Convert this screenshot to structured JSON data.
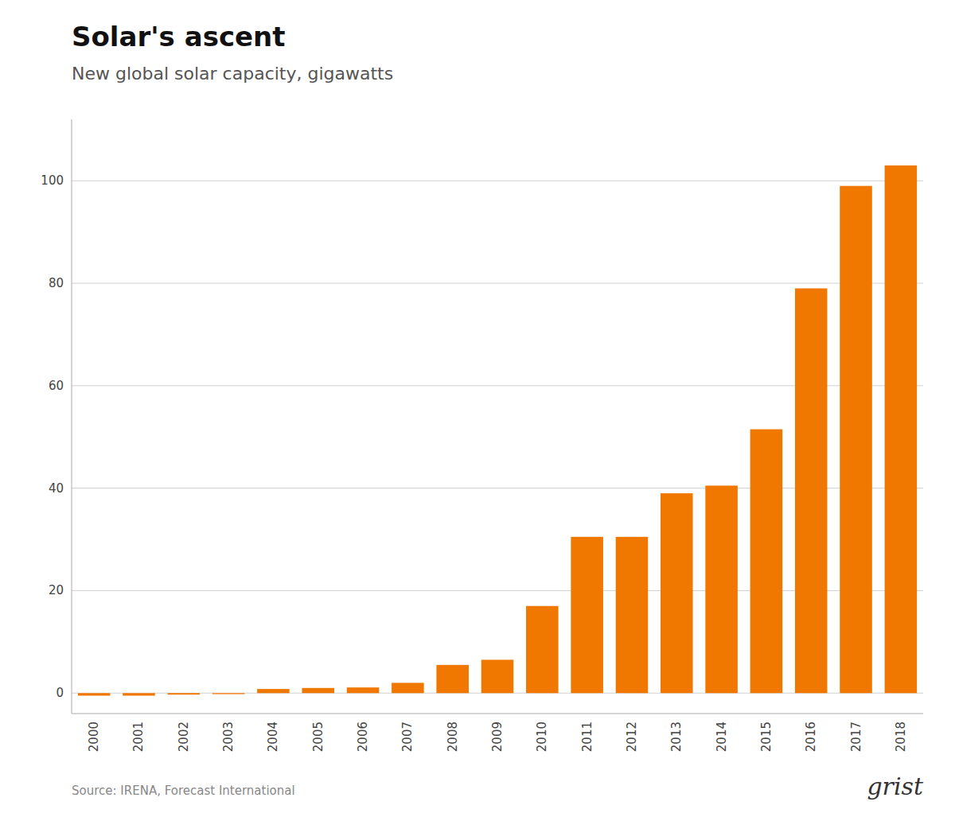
{
  "chart_data": {
    "type": "bar",
    "title": "Solar's ascent",
    "subtitle": "New global solar capacity, gigawatts",
    "annotations": [
      "Source: IRENA, Forecast International",
      "grist"
    ],
    "categories": [
      "2000",
      "2001",
      "2002",
      "2003",
      "2004",
      "2005",
      "2006",
      "2007",
      "2008",
      "2009",
      "2010",
      "2011",
      "2012",
      "2013",
      "2014",
      "2015",
      "2016",
      "2017",
      "2018"
    ],
    "values": [
      -0.5,
      -0.5,
      -0.3,
      -0.2,
      0.8,
      1.0,
      1.1,
      2.0,
      5.5,
      6.5,
      17.0,
      30.5,
      30.5,
      39.0,
      40.5,
      51.5,
      79.0,
      99.0,
      103.0
    ],
    "color": "#f07800",
    "ylim": [
      -4,
      112
    ],
    "yticks": [
      0,
      20,
      40,
      60,
      80,
      100
    ],
    "grid": true
  }
}
